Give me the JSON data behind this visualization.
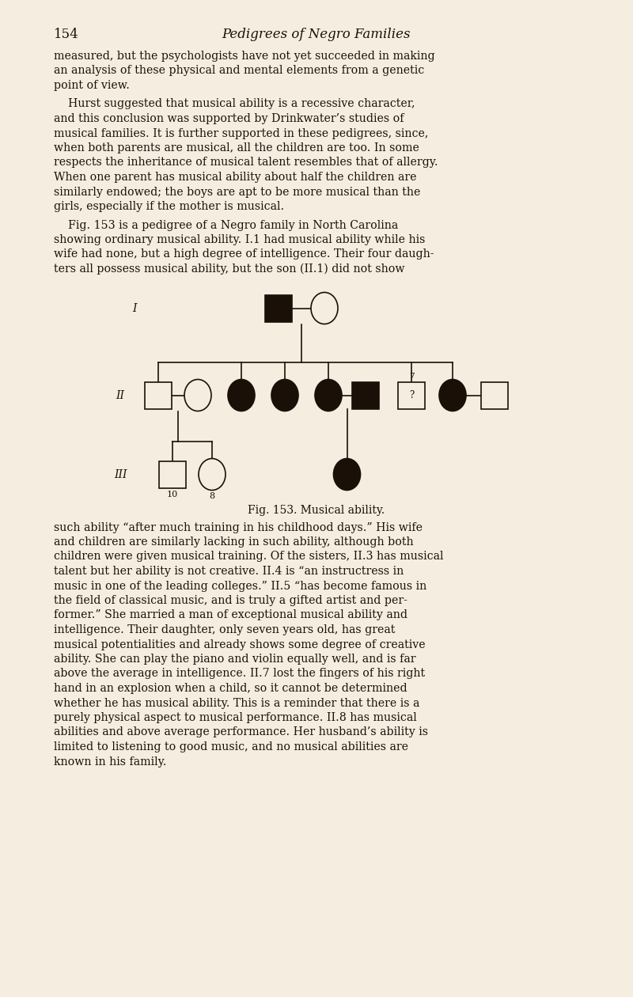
{
  "bg_color": "#f4ede0",
  "text_color": "#1a1008",
  "page_number": "154",
  "header_title": "Pedigrees of Negro Families",
  "figure_caption": "Fig. 153. Musical ability.",
  "line_color": "#1a1008",
  "fill_color": "#1a1008",
  "lines_above": [
    "measured, but the psychologists have not yet succeeded in making",
    "an analysis of these physical and mental elements from a genetic",
    "point of view.",
    "    Hurst suggested that musical ability is a recessive character,",
    "and this conclusion was supported by Drinkwater’s studies of",
    "musical families. It is further supported in these pedigrees, since,",
    "when both parents are musical, all the children are too. In some",
    "respects the inheritance of musical talent resembles that of allergy.",
    "When one parent has musical ability about half the children are",
    "similarly endowed; the boys are apt to be more musical than the",
    "girls, especially if the mother is musical.",
    "    Fig. 153 is a pedigree of a Negro family in North Carolina",
    "showing ordinary musical ability. I.1 had musical ability while his",
    "wife had none, but a high degree of intelligence. Their four daugh-",
    "ters all possess musical ability, but the son (II.1) did not show"
  ],
  "lines_below": [
    "such ability “after much training in his childhood days.” His wife",
    "and children are similarly lacking in such ability, although both",
    "children were given musical training. Of the sisters, II.3 has musical",
    "talent but her ability is not creative. II.4 is “an instructress in",
    "music in one of the leading colleges.” II.5 “has become famous in",
    "the field of classical music, and is truly a gifted artist and per-",
    "former.” She married a man of exceptional musical ability and",
    "intelligence. Their daughter, only seven years old, has great",
    "musical potentialities and already shows some degree of creative",
    "ability. She can play the piano and violin equally well, and is far",
    "above the average in intelligence. II.7 lost the fingers of his right",
    "hand in an explosion when a child, so it cannot be determined",
    "whether he has musical ability. This is a reminder that there is a",
    "purely physical aspect to musical performance. II.8 has musical",
    "abilities and above average performance. Her husband’s ability is",
    "limited to listening to good music, and no musical abilities are",
    "known in his family."
  ]
}
